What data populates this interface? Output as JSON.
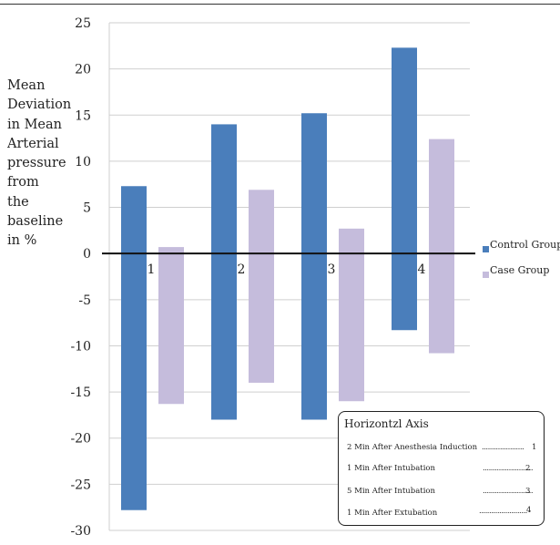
{
  "chart_data": {
    "type": "bar",
    "categories": [
      "1",
      "2",
      "3",
      "4"
    ],
    "series": [
      {
        "name": "Control Group",
        "color": "#4a7ebb",
        "high": [
          7.3,
          14.0,
          15.2,
          22.3
        ],
        "low": [
          -27.8,
          -18.0,
          -18.0,
          -8.3
        ]
      },
      {
        "name": "Case Group",
        "color": "#c5bcdc",
        "high": [
          0.7,
          6.9,
          2.7,
          12.4
        ],
        "low": [
          -16.3,
          -14.0,
          -16.0,
          -10.8
        ]
      }
    ],
    "ylabel": "Mean Deviation in Mean Arterial pressure from the baseline in %",
    "ylim": [
      -30,
      25
    ],
    "ytick_step": 5,
    "grid": true,
    "legend_position": "right"
  },
  "legend": {
    "items": [
      {
        "label": "Control Group",
        "color": "#4a7ebb"
      },
      {
        "label": "Case Group",
        "color": "#c5bcdc"
      }
    ]
  },
  "axis_key": {
    "title": "Horizontzl Axis",
    "rows": [
      {
        "label": "2 Min After Anesthesia Induction",
        "dots": ".....................",
        "num": "1"
      },
      {
        "label": "1 Min After Intubation",
        "dots": ".........................",
        "num": "2"
      },
      {
        "label": "5 Min After Intubation",
        "dots": ".........................",
        "num": "3"
      },
      {
        "label": "1 Min After Extubation",
        "dots": "........................",
        "num": "4"
      }
    ]
  },
  "ylabel_lines": "Mean\nDeviation\nin Mean\nArterial\npressure\nfrom\nthe\nbaseline\nin %"
}
